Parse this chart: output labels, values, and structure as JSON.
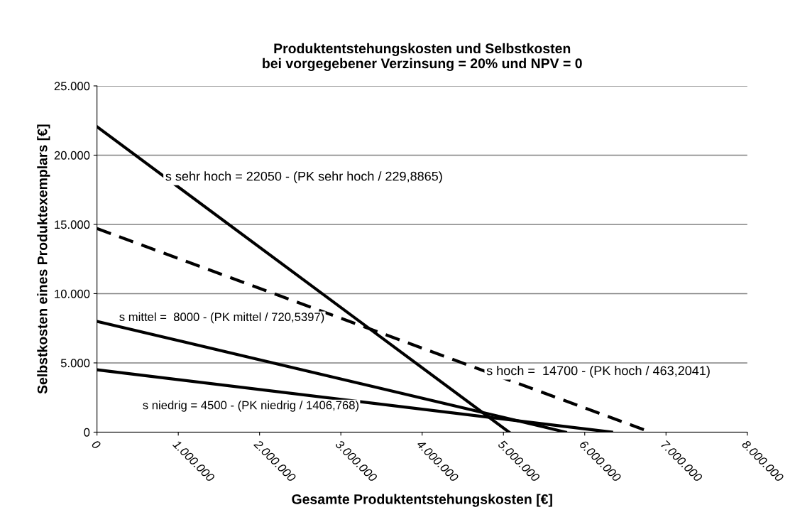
{
  "chart_data": {
    "type": "line",
    "title": "Produktentstehungskosten und Selbstkosten\nbei vorgegebener Verzinsung = 20% und NPV = 0",
    "xlabel": "Gesamte Produktentstehungskosten [€]",
    "ylabel": "Selbstkosten eines Produktexemplars [€]",
    "series": [
      {
        "color": "#000000",
        "line_style": "solid",
        "x": [
          0,
          5069000
        ],
        "values": [
          22050,
          0
        ]
      },
      {
        "color": "#000000",
        "line_style": "dashed",
        "x": [
          0,
          6809100
        ],
        "values": [
          14700,
          0
        ]
      },
      {
        "color": "#000000",
        "line_style": "solid",
        "x": [
          0,
          5764300
        ],
        "values": [
          8000,
          0
        ]
      },
      {
        "color": "#000000",
        "line_style": "solid",
        "x": [
          0,
          6330500
        ],
        "values": [
          4500,
          0
        ]
      }
    ],
    "annotations": [
      {
        "text": "s sehr hoch = 22050 - (PK sehr hoch / 229,8865)",
        "x": 840000,
        "y": 18400
      },
      {
        "text": "s hoch =  14700 - (PK hoch / 463,2041)",
        "x": 4790000,
        "y": 4360
      },
      "s mittel =  8000 - (PK mittel / 720,5397)",
      "s niedrig = 4500 - (PK niedrig / 1406,768)"
    ],
    "xlim": [
      0,
      8000000
    ],
    "ylim": [
      0,
      25000
    ],
    "xticks": [
      {
        "value": 0,
        "label": "0"
      },
      {
        "value": 1000000,
        "label": "1.000.000"
      },
      {
        "value": 2000000,
        "label": "2.000.000"
      },
      {
        "value": 3000000,
        "label": "3.000.000"
      },
      {
        "value": 4000000,
        "label": "4.000.000"
      },
      {
        "value": 5000000,
        "label": "5.000.000"
      },
      {
        "value": 6000000,
        "label": "6.000.000"
      },
      {
        "value": 7000000,
        "label": "7.000.000"
      },
      {
        "value": 8000000,
        "label": "8.000.000"
      }
    ],
    "yticks": [
      {
        "value": 0,
        "label": "0"
      },
      {
        "value": 5000,
        "label": "5.000"
      },
      {
        "value": 10000,
        "label": "10.000"
      },
      {
        "value": 15000,
        "label": "15.000"
      },
      {
        "value": 20000,
        "label": "20.000"
      },
      {
        "value": 25000,
        "label": "25.000"
      }
    ],
    "grid": "y",
    "legend": false,
    "marker": "none"
  }
}
